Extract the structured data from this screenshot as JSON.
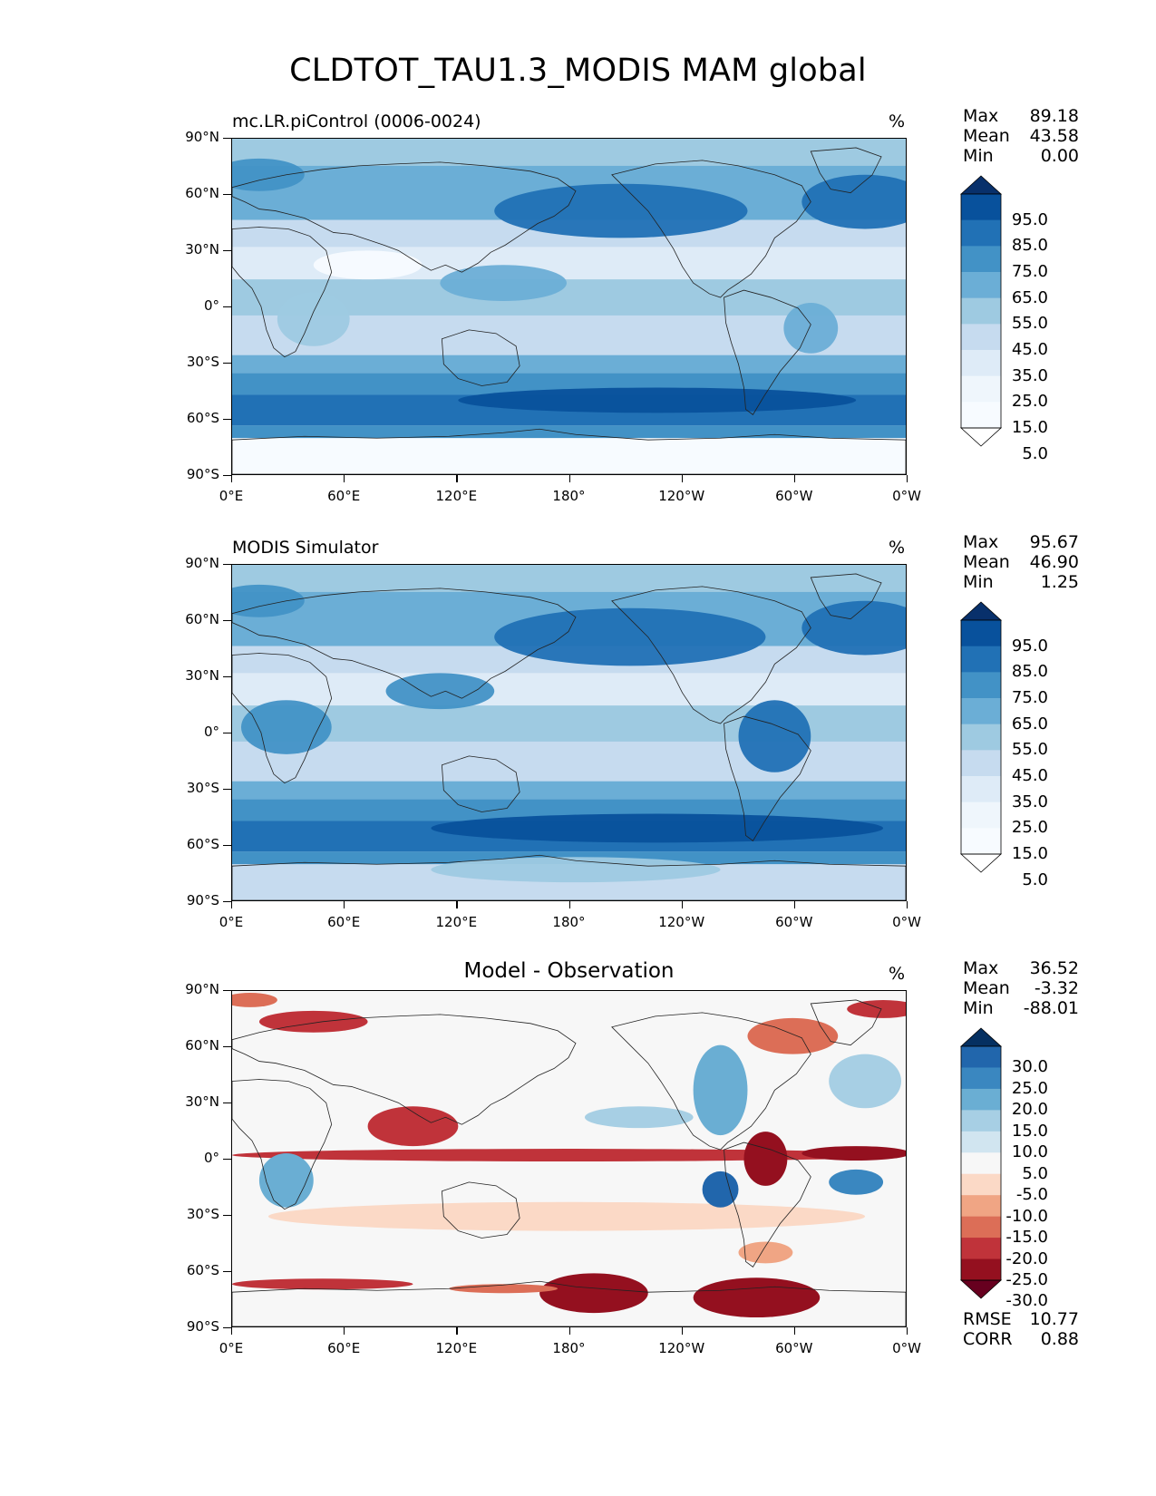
{
  "figure_title": "CLDTOT_TAU1.3_MODIS MAM global",
  "axes": {
    "lat_ticks": [
      "90°N",
      "60°N",
      "30°N",
      "0°",
      "30°S",
      "60°S",
      "90°S"
    ],
    "lon_ticks": [
      "0°E",
      "60°E",
      "120°E",
      "180°",
      "120°W",
      "60°W",
      "0°W"
    ]
  },
  "panels": [
    {
      "title": "mc.LR.piControl (0006-0024)",
      "units": "%",
      "stats": [
        {
          "label": "Max",
          "value": "89.18"
        },
        {
          "label": "Mean",
          "value": "43.58"
        },
        {
          "label": "Min",
          "value": "0.00"
        }
      ],
      "colorbar": {
        "labels": [
          "95.0",
          "85.0",
          "75.0",
          "65.0",
          "55.0",
          "45.0",
          "35.0",
          "25.0",
          "15.0",
          "5.0"
        ],
        "colors": [
          "#08306b",
          "#08519c",
          "#2171b5",
          "#4292c6",
          "#6baed6",
          "#9ecae1",
          "#c6dbef",
          "#deebf7",
          "#eff6fc",
          "#f7fbff",
          "#ffffff"
        ]
      }
    },
    {
      "title": "MODIS Simulator",
      "units": "%",
      "stats": [
        {
          "label": "Max",
          "value": "95.67"
        },
        {
          "label": "Mean",
          "value": "46.90"
        },
        {
          "label": "Min",
          "value": "1.25"
        }
      ],
      "colorbar": {
        "labels": [
          "95.0",
          "85.0",
          "75.0",
          "65.0",
          "55.0",
          "45.0",
          "35.0",
          "25.0",
          "15.0",
          "5.0"
        ],
        "colors": [
          "#08306b",
          "#08519c",
          "#2171b5",
          "#4292c6",
          "#6baed6",
          "#9ecae1",
          "#c6dbef",
          "#deebf7",
          "#eff6fc",
          "#f7fbff",
          "#ffffff"
        ]
      }
    },
    {
      "title": "Model - Observation",
      "units": "%",
      "stats": [
        {
          "label": "Max",
          "value": "36.52"
        },
        {
          "label": "Mean",
          "value": "-3.32"
        },
        {
          "label": "Min",
          "value": "-88.01"
        }
      ],
      "extra_stats": [
        {
          "label": "RMSE",
          "value": "10.77"
        },
        {
          "label": "CORR",
          "value": "0.88"
        }
      ],
      "colorbar": {
        "labels": [
          "30.0",
          "25.0",
          "20.0",
          "15.0",
          "10.0",
          "5.0",
          "-5.0",
          "-10.0",
          "-15.0",
          "-20.0",
          "-25.0",
          "-30.0"
        ],
        "colors": [
          "#053061",
          "#2166ac",
          "#3a87c0",
          "#6aaed3",
          "#a7cfe4",
          "#d1e5f0",
          "#f7f7f7",
          "#fbd9c6",
          "#f0a584",
          "#dc6e57",
          "#c0333a",
          "#94101f",
          "#67001f"
        ]
      }
    }
  ]
}
